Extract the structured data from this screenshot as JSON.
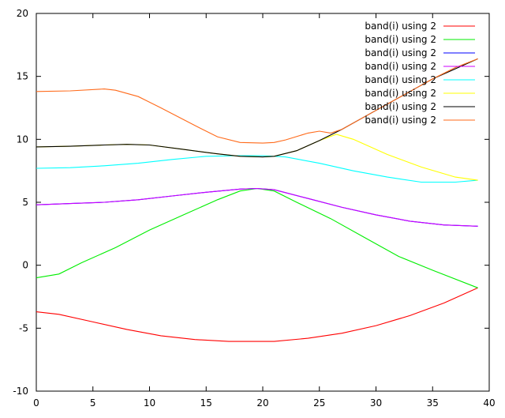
{
  "chart_data": {
    "type": "line",
    "title": "",
    "xlabel": "",
    "ylabel": "",
    "xlim": [
      0,
      40
    ],
    "ylim": [
      -10,
      20
    ],
    "x_ticks": [
      "0",
      "5",
      "10",
      "15",
      "20",
      "25",
      "30",
      "35",
      "40"
    ],
    "y_ticks": [
      "-10",
      "-5",
      "0",
      "5",
      "10",
      "15",
      "20"
    ],
    "grid": false,
    "legend_position": "top-right",
    "series": [
      {
        "name": "band(i) using 2",
        "color": "#ff0000",
        "x": [
          0,
          2,
          5,
          8,
          11,
          14,
          17,
          19.5,
          21,
          24,
          27,
          30,
          33,
          36,
          39
        ],
        "y": [
          -3.7,
          -3.9,
          -4.5,
          -5.1,
          -5.6,
          -5.9,
          -6.05,
          -6.05,
          -6.05,
          -5.8,
          -5.4,
          -4.8,
          -4.0,
          -3.0,
          -1.8
        ]
      },
      {
        "name": "band(i) using 2",
        "color": "#00ee00",
        "x": [
          0,
          2,
          4,
          7,
          10,
          13,
          16,
          18,
          19.5,
          21,
          23,
          26,
          29,
          32,
          35,
          39
        ],
        "y": [
          -1.0,
          -0.7,
          0.2,
          1.4,
          2.8,
          4.0,
          5.2,
          5.9,
          6.1,
          5.9,
          5.0,
          3.7,
          2.2,
          0.7,
          -0.4,
          -1.8
        ]
      },
      {
        "name": "band(i) using 2",
        "color": "#0000ff",
        "x": [
          0,
          3,
          6,
          9,
          12,
          15,
          18,
          19.5,
          21,
          24,
          27,
          30,
          33,
          36,
          39
        ],
        "y": [
          4.8,
          4.9,
          5.0,
          5.2,
          5.5,
          5.8,
          6.05,
          6.1,
          6.0,
          5.3,
          4.6,
          4.0,
          3.5,
          3.2,
          3.1
        ]
      },
      {
        "name": "band(i) using 2",
        "color": "#cc00ff",
        "x": [
          0,
          3,
          6,
          9,
          12,
          15,
          18,
          19.5,
          21,
          24,
          27,
          30,
          33,
          36,
          39
        ],
        "y": [
          4.8,
          4.9,
          5.0,
          5.2,
          5.5,
          5.8,
          6.05,
          6.1,
          6.0,
          5.3,
          4.6,
          4.0,
          3.5,
          3.2,
          3.1
        ]
      },
      {
        "name": "band(i) using 2",
        "color": "#00ffff",
        "x": [
          0,
          3,
          6,
          9,
          12,
          15,
          18,
          20,
          22,
          25,
          28,
          31,
          34,
          37,
          39
        ],
        "y": [
          7.7,
          7.75,
          7.9,
          8.1,
          8.4,
          8.65,
          8.7,
          8.7,
          8.6,
          8.1,
          7.5,
          7.0,
          6.6,
          6.6,
          6.75
        ]
      },
      {
        "name": "band(i) using 2",
        "color": "#ffff00",
        "x": [
          0,
          3,
          6,
          8,
          10,
          13,
          16,
          18,
          20,
          21,
          23,
          25,
          26.5,
          28,
          31,
          34,
          37,
          39
        ],
        "y": [
          9.4,
          9.45,
          9.55,
          9.6,
          9.55,
          9.2,
          8.85,
          8.65,
          8.6,
          8.65,
          9.1,
          9.9,
          10.4,
          10.0,
          8.8,
          7.8,
          7.0,
          6.75
        ]
      },
      {
        "name": "band(i) using 2",
        "color": "#000000",
        "x": [
          0,
          3,
          6,
          8,
          10,
          13,
          16,
          18,
          20,
          21,
          23,
          25,
          27,
          29,
          31,
          33,
          35,
          37,
          39
        ],
        "y": [
          9.4,
          9.45,
          9.55,
          9.6,
          9.55,
          9.2,
          8.85,
          8.65,
          8.6,
          8.65,
          9.1,
          9.9,
          10.8,
          11.8,
          12.8,
          13.8,
          14.8,
          15.6,
          16.4
        ]
      },
      {
        "name": "band(i) using 2",
        "color": "#ff6a1a",
        "x": [
          0,
          3,
          6,
          7,
          9,
          11,
          14,
          16,
          18,
          20,
          21,
          22,
          24,
          25,
          26,
          27,
          29,
          31,
          33,
          35,
          37,
          39
        ],
        "y": [
          13.8,
          13.85,
          14.0,
          13.9,
          13.4,
          12.5,
          11.1,
          10.2,
          9.75,
          9.7,
          9.75,
          9.95,
          10.5,
          10.65,
          10.5,
          10.8,
          11.8,
          12.8,
          13.8,
          14.8,
          15.7,
          16.4
        ]
      }
    ]
  }
}
